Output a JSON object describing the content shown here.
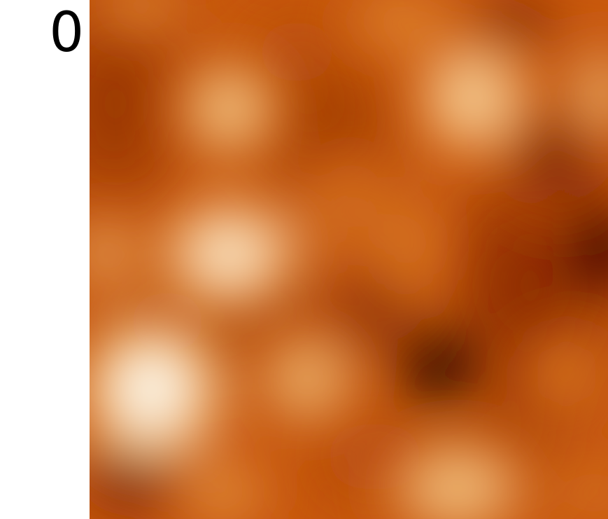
{
  "chart_data": {
    "type": "heatmap",
    "colormap": "afmhot",
    "title": "",
    "xlabel": "",
    "ylabel": "",
    "grid": false,
    "legend": "none",
    "y_tick_labels": [
      "0"
    ],
    "colors": {
      "background": "#8a2a00",
      "dark": "#000000",
      "mid": "#c9580e",
      "light": "#f3a24b",
      "bright": "#fbf3df"
    },
    "features": [
      {
        "kind": "peak",
        "x": 0.12,
        "y": 0.75,
        "rx": 0.1,
        "ry": 0.1,
        "value": 1.0
      },
      {
        "kind": "peak",
        "x": 0.27,
        "y": 0.49,
        "rx": 0.1,
        "ry": 0.08,
        "value": 0.92
      },
      {
        "kind": "peak",
        "x": 0.27,
        "y": 0.21,
        "rx": 0.08,
        "ry": 0.08,
        "value": 0.78
      },
      {
        "kind": "peak",
        "x": 0.74,
        "y": 0.19,
        "rx": 0.09,
        "ry": 0.09,
        "value": 0.82
      },
      {
        "kind": "peak",
        "x": 0.42,
        "y": 0.73,
        "rx": 0.09,
        "ry": 0.08,
        "value": 0.72
      },
      {
        "kind": "peak",
        "x": 0.71,
        "y": 0.94,
        "rx": 0.12,
        "ry": 0.08,
        "value": 0.76
      },
      {
        "kind": "peak",
        "x": 0.26,
        "y": 0.95,
        "rx": 0.08,
        "ry": 0.06,
        "value": 0.62
      },
      {
        "kind": "peak",
        "x": 0.03,
        "y": 0.49,
        "rx": 0.06,
        "ry": 0.07,
        "value": 0.68
      },
      {
        "kind": "peak",
        "x": 0.99,
        "y": 0.18,
        "rx": 0.06,
        "ry": 0.09,
        "value": 0.7
      },
      {
        "kind": "peak",
        "x": 0.6,
        "y": 0.04,
        "rx": 0.1,
        "ry": 0.05,
        "value": 0.6
      },
      {
        "kind": "peak",
        "x": 0.1,
        "y": 0.01,
        "rx": 0.08,
        "ry": 0.04,
        "value": 0.62
      },
      {
        "kind": "peak",
        "x": 0.92,
        "y": 0.72,
        "rx": 0.06,
        "ry": 0.06,
        "value": 0.55
      },
      {
        "kind": "peak",
        "x": 0.62,
        "y": 0.47,
        "rx": 0.05,
        "ry": 0.1,
        "value": 0.55
      },
      {
        "kind": "peak",
        "x": 0.5,
        "y": 0.4,
        "rx": 0.08,
        "ry": 0.08,
        "value": 0.5
      },
      {
        "kind": "peak",
        "x": 0.98,
        "y": 0.95,
        "rx": 0.05,
        "ry": 0.05,
        "value": 0.55
      },
      {
        "kind": "trough",
        "x": 0.67,
        "y": 0.7,
        "rx": 0.06,
        "ry": 0.06,
        "value": 0.0
      },
      {
        "kind": "trough",
        "x": 0.99,
        "y": 0.48,
        "rx": 0.06,
        "ry": 0.07,
        "value": 0.05
      },
      {
        "kind": "trough",
        "x": 0.08,
        "y": 0.93,
        "rx": 0.08,
        "ry": 0.06,
        "value": 0.2
      },
      {
        "kind": "trough",
        "x": 0.9,
        "y": 0.3,
        "rx": 0.09,
        "ry": 0.09,
        "value": 0.22
      },
      {
        "kind": "trough",
        "x": 0.82,
        "y": 0.04,
        "rx": 0.07,
        "ry": 0.05,
        "value": 0.22
      },
      {
        "kind": "trough",
        "x": 0.55,
        "y": 0.6,
        "rx": 0.08,
        "ry": 0.06,
        "value": 0.25
      }
    ]
  }
}
